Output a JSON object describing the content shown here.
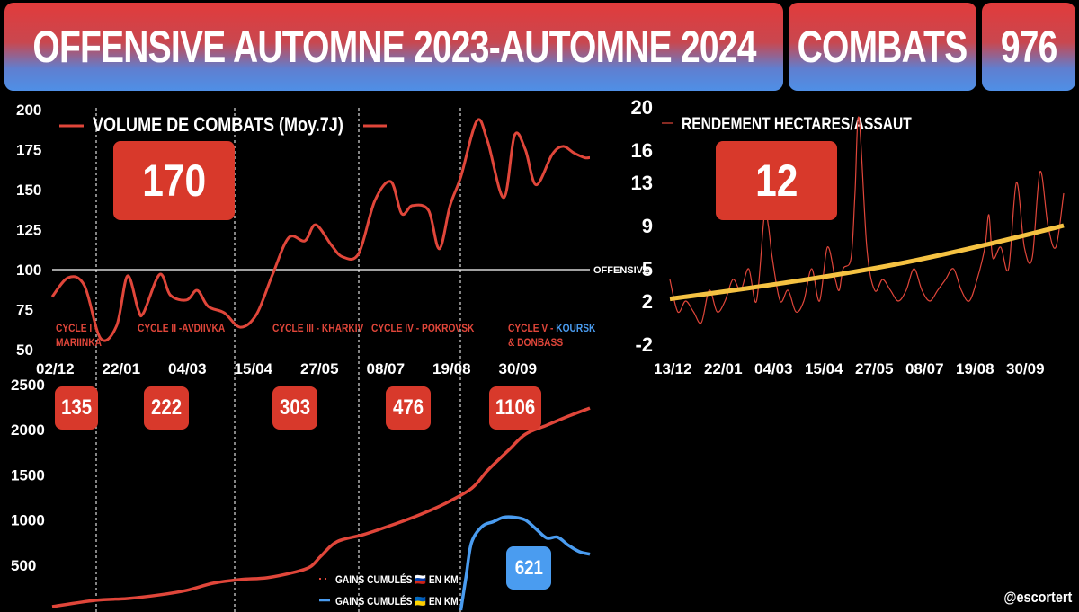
{
  "header": {
    "title": "OFFENSIVE AUTOMNE 2023-AUTOMNE 2024",
    "combats_label": "COMBATS",
    "combats_value": "976"
  },
  "colors": {
    "red": "#d8392b",
    "blue": "#4a9cf0",
    "yellow": "#f5c242",
    "line_red": "#e0463a"
  },
  "credit": "@escortert",
  "chart_data": [
    {
      "type": "line",
      "title": "VOLUME DE COMBATS (Moy.7J)",
      "current_value": "170",
      "ylim": [
        50,
        200
      ],
      "yticks": [
        "200",
        "175",
        "150",
        "125",
        "100",
        "75",
        "50"
      ],
      "x_tick_labels": [
        "02/12",
        "22/01",
        "04/03",
        "15/04",
        "27/05",
        "08/07",
        "19/08",
        "30/09"
      ],
      "reference_line": {
        "value": 100,
        "label": "OFFENSIVE"
      },
      "cycles": [
        {
          "label": "CYCLE I -",
          "label2": "MARIINKA",
          "gains_km": "135"
        },
        {
          "label": "CYCLE II -AVDIIVKA",
          "label2": "",
          "gains_km": "222"
        },
        {
          "label": "CYCLE III - KHARKIV",
          "label2": "",
          "gains_km": "303"
        },
        {
          "label": "CYCLE IV - POKROVSK",
          "label2": "",
          "gains_km": "476"
        },
        {
          "label": "CYCLE V - ",
          "label_blue": "KOURSK",
          "label2": "& DONBASS",
          "gains_km": "1106"
        }
      ],
      "series": [
        {
          "name": "Volume de combats",
          "t": [
            0,
            3,
            6,
            9,
            12,
            14,
            16,
            17,
            20,
            22,
            25,
            27,
            29,
            32,
            35,
            38,
            41,
            44,
            47,
            49,
            52,
            54,
            57,
            60,
            63,
            65,
            67,
            70,
            72,
            74,
            76,
            79,
            81,
            84,
            86,
            88,
            90,
            93,
            95,
            97,
            99,
            100
          ],
          "values": [
            83,
            95,
            90,
            57,
            65,
            96,
            75,
            73,
            97,
            84,
            81,
            87,
            77,
            73,
            64,
            72,
            97,
            120,
            118,
            128,
            115,
            108,
            110,
            143,
            155,
            135,
            140,
            137,
            113,
            140,
            158,
            193,
            180,
            145,
            184,
            175,
            153,
            172,
            177,
            173,
            170,
            170
          ]
        }
      ]
    },
    {
      "type": "line",
      "title": "GAINS CUMULÉS EN KM",
      "ylim": [
        0,
        2500
      ],
      "yticks": [
        "2500",
        "2000",
        "1500",
        "1000",
        "500"
      ],
      "current_value_ukraine": "621",
      "legend": [
        {
          "name": "GAINS CUMULÉS 🇷🇺 EN KM",
          "color": "#d8392b"
        },
        {
          "name": "GAINS CUMULÉS 🇺🇦 EN KM",
          "color": "#4a9cf0"
        }
      ],
      "series": [
        {
          "name": "Russie",
          "t": [
            0,
            8,
            14,
            20,
            25,
            30,
            35,
            40,
            45,
            48,
            50,
            53,
            58,
            63,
            68,
            73,
            78,
            81,
            85,
            88,
            92,
            96,
            100
          ],
          "values": [
            40,
            110,
            130,
            170,
            220,
            300,
            340,
            360,
            420,
            480,
            600,
            760,
            840,
            940,
            1050,
            1180,
            1350,
            1550,
            1780,
            1950,
            2050,
            2150,
            2240
          ]
        },
        {
          "name": "Ukraine",
          "t": [
            76,
            77,
            78,
            80,
            82,
            84,
            86,
            88,
            90,
            92,
            94,
            96,
            98,
            100
          ],
          "values": [
            0,
            380,
            750,
            930,
            980,
            1030,
            1030,
            1000,
            900,
            800,
            810,
            720,
            650,
            620
          ]
        }
      ]
    },
    {
      "type": "line",
      "title": "RENDEMENT HECTARES/ASSAUT",
      "current_value": "12",
      "ylim": [
        -2,
        20
      ],
      "yticks": [
        "20",
        "16",
        "13",
        "9",
        "5",
        "2",
        "-2"
      ],
      "x_tick_labels": [
        "13/12",
        "22/01",
        "04/03",
        "15/04",
        "27/05",
        "08/07",
        "19/08",
        "30/09"
      ],
      "series": [
        {
          "name": "Rendement",
          "t": [
            0,
            2,
            4,
            6,
            8,
            10,
            12,
            14,
            16,
            18,
            20,
            22,
            24,
            25,
            26,
            28,
            30,
            32,
            34,
            36,
            38,
            40,
            42,
            43,
            44,
            46,
            47,
            48,
            50,
            52,
            54,
            56,
            58,
            60,
            62,
            64,
            66,
            68,
            70,
            72,
            74,
            76,
            78,
            80,
            81,
            82,
            84,
            86,
            88,
            90,
            92,
            94,
            96,
            98,
            100
          ],
          "values": [
            4,
            1,
            2,
            1,
            0,
            3,
            1,
            2,
            4,
            3,
            5,
            2,
            10,
            9,
            6,
            2,
            3,
            1,
            2,
            5,
            2,
            7,
            4,
            3,
            5,
            6,
            12,
            19,
            7,
            3,
            4,
            3,
            2,
            3,
            5,
            3,
            2,
            3,
            4,
            5,
            3,
            2,
            4,
            7,
            10,
            6,
            7,
            5,
            13,
            7,
            6,
            14,
            9,
            7,
            12
          ]
        },
        {
          "name": "Tendance",
          "t": [
            0,
            20,
            40,
            60,
            80,
            100
          ],
          "values": [
            2.2,
            3.2,
            4.3,
            5.6,
            7.2,
            9.0
          ]
        }
      ]
    }
  ]
}
